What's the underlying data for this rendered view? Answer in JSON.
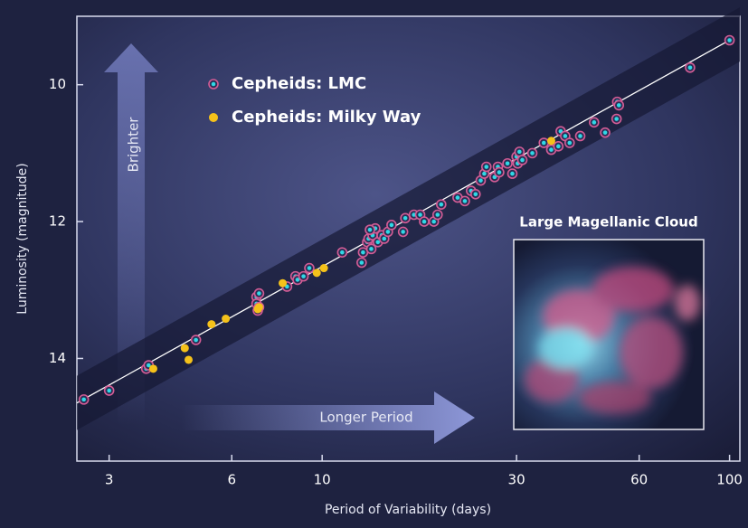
{
  "chart_data": {
    "type": "scatter",
    "xlabel": "Period of Variability (days)",
    "ylabel": "Luminosity (magnitude)",
    "xscale": "log",
    "y_inverted": true,
    "xlim": [
      2.5,
      106
    ],
    "ylim": [
      15.5,
      9
    ],
    "xticks": [
      3,
      6,
      10,
      30,
      60,
      100
    ],
    "yticks": [
      10,
      12,
      14
    ],
    "legend": "top-left",
    "annotations": [
      "Brighter",
      "Longer Period"
    ],
    "inset_title": "Large Magellanic Cloud",
    "fit_line": {
      "x": [
        2.5,
        100
      ],
      "values": [
        14.65,
        9.35
      ],
      "color": "#ffffff"
    },
    "series": [
      {
        "name": "Cepheids: LMC",
        "color": "#2fd8e6",
        "x": [
          2.6,
          3.0,
          3.7,
          3.75,
          4.9,
          6.9,
          6.9,
          6.95,
          7.0,
          7.0,
          8.2,
          8.6,
          8.7,
          9.3,
          9.0,
          11.2,
          12.5,
          12.6,
          12.9,
          13.0,
          13.2,
          13.3,
          13.5,
          13.7,
          14.0,
          14.2,
          14.5,
          13.1,
          14.8,
          15.8,
          16.0,
          16.8,
          17.4,
          17.8,
          18.8,
          19.2,
          19.6,
          21.5,
          22.4,
          23.2,
          23.8,
          24.5,
          25.0,
          25.3,
          26.5,
          27.0,
          27.2,
          28.5,
          29.3,
          30.0,
          30.2,
          30.5,
          31.0,
          32.8,
          35.0,
          36.5,
          38.0,
          38.5,
          39.5,
          40.5,
          43.0,
          46.5,
          49.5,
          52.8,
          53.0,
          53.5,
          80,
          100
        ],
        "values": [
          14.6,
          14.47,
          14.15,
          14.1,
          13.73,
          13.1,
          13.2,
          13.3,
          13.05,
          13.25,
          12.95,
          12.8,
          12.85,
          12.68,
          12.8,
          12.45,
          12.6,
          12.45,
          12.3,
          12.25,
          12.4,
          12.2,
          12.1,
          12.3,
          12.2,
          12.25,
          12.15,
          12.12,
          12.05,
          12.15,
          11.95,
          11.9,
          11.9,
          12.0,
          12.0,
          11.9,
          11.75,
          11.65,
          11.7,
          11.55,
          11.6,
          11.4,
          11.3,
          11.2,
          11.35,
          11.2,
          11.28,
          11.15,
          11.3,
          11.05,
          11.15,
          10.98,
          11.1,
          11.0,
          10.85,
          10.95,
          10.9,
          10.68,
          10.75,
          10.85,
          10.75,
          10.55,
          10.7,
          10.5,
          10.25,
          10.3,
          9.75,
          9.35
        ]
      },
      {
        "name": "Cepheids: Milky Way",
        "color": "#f5c21a",
        "x": [
          3.85,
          4.6,
          4.7,
          5.35,
          5.8,
          6.95,
          7.0,
          8.0,
          9.7,
          10.1,
          36.5
        ],
        "values": [
          14.15,
          13.85,
          14.02,
          13.5,
          13.42,
          13.28,
          13.25,
          12.9,
          12.75,
          12.68,
          10.82
        ]
      }
    ]
  }
}
